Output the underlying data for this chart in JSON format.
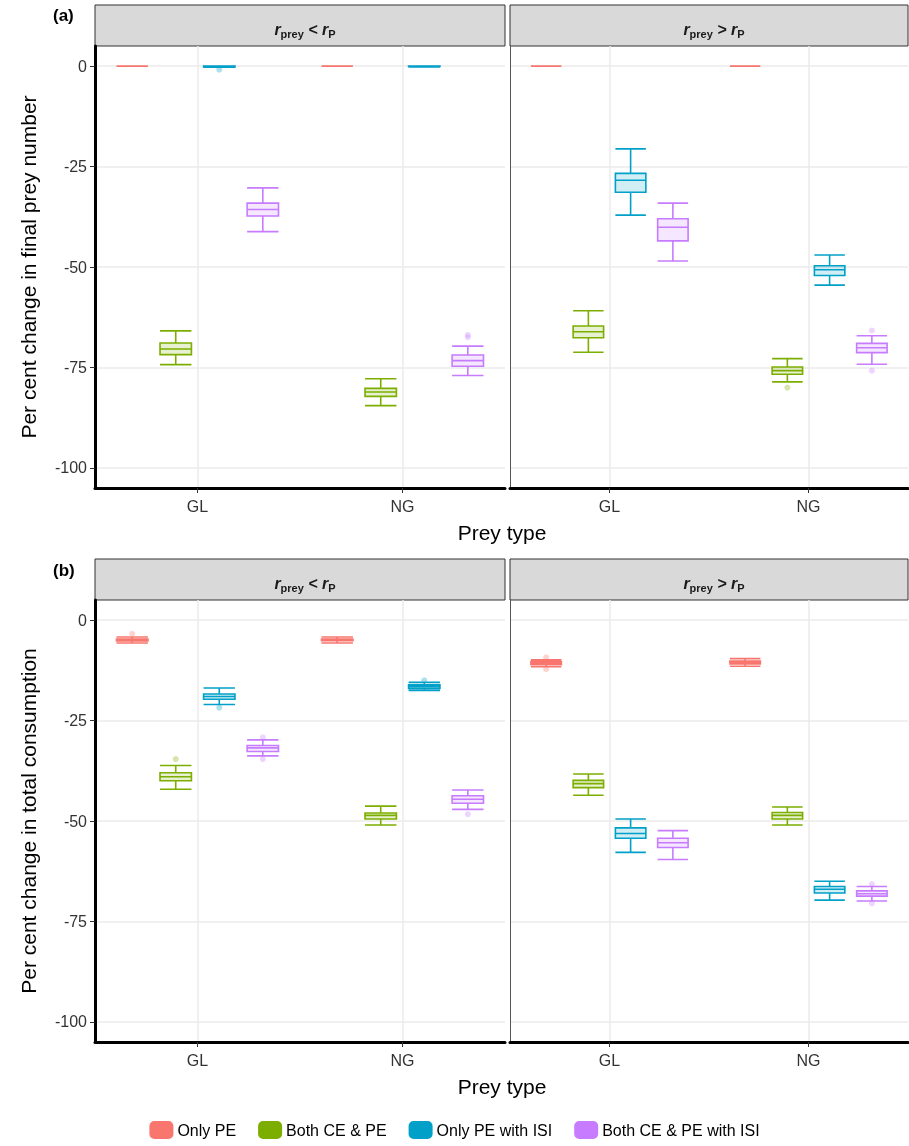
{
  "chart_data": [
    {
      "type": "box",
      "title": "r$_{prey}$ < r$_{P}$",
      "annotations": [
        "(a)"
      ],
      "xlabel": "Prey type",
      "ylabel": "Per cent change in final prey number",
      "categories": [
        "GL",
        "NG"
      ],
      "ylim": [
        -105,
        5
      ],
      "yticks": [
        0,
        -25,
        -50,
        -75,
        -100
      ],
      "grid": true,
      "series": [
        {
          "color": "#f8766d",
          "boxes": [
            {
              "low": 0,
              "q1": 0,
              "median": 0,
              "q3": 0,
              "high": 0
            },
            {
              "low": 0,
              "q1": 0,
              "median": 0,
              "q3": 0,
              "high": 0
            }
          ]
        },
        {
          "color": "#7cae00",
          "boxes": [
            {
              "low": -74.3,
              "q1": -71.8,
              "median": -70.4,
              "q3": -68.9,
              "high": -65.9
            },
            {
              "low": -84.5,
              "q1": -82.2,
              "median": -81.1,
              "q3": -80.2,
              "high": -77.8
            }
          ]
        },
        {
          "color": "#00a0c8",
          "boxes": [
            {
              "low": -0.3,
              "q1": -0.2,
              "median": -0.1,
              "q3": 0,
              "high": 0,
              "outliers": [
                -0.9
              ]
            },
            {
              "low": -0.2,
              "q1": -0.1,
              "median": 0,
              "q3": 0,
              "high": 0
            }
          ]
        },
        {
          "color": "#c77cff",
          "boxes": [
            {
              "low": -41.2,
              "q1": -37.3,
              "median": -35.7,
              "q3": -34.1,
              "high": -30.3
            },
            {
              "low": -77,
              "q1": -74.7,
              "median": -73.3,
              "q3": -71.9,
              "high": -69.7,
              "outliers": [
                -66.9,
                -67.5
              ]
            }
          ]
        }
      ]
    },
    {
      "type": "box",
      "title": "r$_{prey}$ > r$_{P}$",
      "categories": [
        "GL",
        "NG"
      ],
      "ylim": [
        -105,
        5
      ],
      "yticks": [
        0,
        -25,
        -50,
        -75,
        -100
      ],
      "grid": true,
      "tick_labels": "x",
      "series": [
        {
          "color": "#f8766d",
          "boxes": [
            {
              "low": 0,
              "q1": 0,
              "median": 0,
              "q3": 0,
              "high": 0
            },
            {
              "low": 0,
              "q1": 0,
              "median": 0,
              "q3": 0,
              "high": 0
            }
          ]
        },
        {
          "color": "#7cae00",
          "boxes": [
            {
              "low": -71.2,
              "q1": -67.6,
              "median": -66.1,
              "q3": -64.7,
              "high": -60.9
            },
            {
              "low": -78.6,
              "q1": -76.7,
              "median": -75.8,
              "q3": -74.9,
              "high": -72.8,
              "outliers": [
                -80
              ]
            }
          ]
        },
        {
          "color": "#00a0c8",
          "boxes": [
            {
              "low": -37.1,
              "q1": -31.4,
              "median": -28.4,
              "q3": -26.7,
              "high": -20.6
            },
            {
              "low": -54.5,
              "q1": -52.1,
              "median": -50.7,
              "q3": -49.7,
              "high": -47
            }
          ]
        },
        {
          "color": "#c77cff",
          "boxes": [
            {
              "low": -48.5,
              "q1": -43.5,
              "median": -40.1,
              "q3": -38,
              "high": -34.1
            },
            {
              "low": -74.2,
              "q1": -71.3,
              "median": -70.1,
              "q3": -69,
              "high": -67.1,
              "outliers": [
                -65.8,
                -75.8
              ]
            }
          ]
        }
      ]
    },
    {
      "type": "box",
      "title": "r$_{prey}$ < r$_{P}$",
      "annotations": [
        "(b)"
      ],
      "xlabel": "Prey type",
      "ylabel": "Per cent change in total consumption",
      "categories": [
        "GL",
        "NG"
      ],
      "ylim": [
        -105,
        5
      ],
      "yticks": [
        0,
        -25,
        -50,
        -75,
        -100
      ],
      "grid": true,
      "legend": "bottom",
      "series": [
        {
          "name": "Only PE",
          "color": "#f8766d",
          "boxes": [
            {
              "low": -5.7,
              "q1": -5.2,
              "median": -4.9,
              "q3": -4.7,
              "high": -4.2,
              "outliers": [
                -3.4
              ]
            },
            {
              "low": -5.7,
              "q1": -5.1,
              "median": -4.9,
              "q3": -4.7,
              "high": -4.2
            }
          ]
        },
        {
          "name": "Both CE & PE",
          "color": "#7cae00",
          "boxes": [
            {
              "low": -42.1,
              "q1": -40,
              "median": -39,
              "q3": -38,
              "high": -36.2,
              "outliers": [
                -34.6
              ]
            },
            {
              "low": -51,
              "q1": -49.5,
              "median": -48.6,
              "q3": -48,
              "high": -46.3
            }
          ]
        },
        {
          "name": "Only PE with ISI",
          "color": "#00a0c8",
          "boxes": [
            {
              "low": -21,
              "q1": -19.7,
              "median": -19,
              "q3": -18.4,
              "high": -16.9,
              "outliers": [
                -21.8
              ]
            },
            {
              "low": -17.5,
              "q1": -17,
              "median": -16.5,
              "q3": -16.1,
              "high": -15.5,
              "outliers": [
                -15
              ]
            }
          ]
        },
        {
          "name": "Both CE & PE with ISI",
          "color": "#c77cff",
          "boxes": [
            {
              "low": -33.8,
              "q1": -32.7,
              "median": -31.8,
              "q3": -31.2,
              "high": -29.8,
              "outliers": [
                -29.2,
                -34.6
              ]
            },
            {
              "low": -47.1,
              "q1": -45.6,
              "median": -44.6,
              "q3": -43.7,
              "high": -42.3,
              "outliers": [
                -48.3
              ]
            }
          ]
        }
      ]
    },
    {
      "type": "box",
      "title": "r$_{prey}$ > r$_{P}$",
      "categories": [
        "GL",
        "NG"
      ],
      "ylim": [
        -105,
        5
      ],
      "yticks": [
        0,
        -25,
        -50,
        -75,
        -100
      ],
      "grid": true,
      "tick_labels": "x",
      "series": [
        {
          "color": "#f8766d",
          "boxes": [
            {
              "low": -11.6,
              "q1": -11.1,
              "median": -10.7,
              "q3": -10.3,
              "high": -9.9,
              "outliers": [
                -9.3,
                -12.2
              ]
            },
            {
              "low": -11.5,
              "q1": -10.9,
              "median": -10.6,
              "q3": -10.2,
              "high": -9.6
            }
          ]
        },
        {
          "color": "#7cae00",
          "boxes": [
            {
              "low": -43.6,
              "q1": -41.7,
              "median": -40.7,
              "q3": -39.9,
              "high": -38.3
            },
            {
              "low": -51,
              "q1": -49.5,
              "median": -48.6,
              "q3": -47.9,
              "high": -46.5
            }
          ]
        },
        {
          "color": "#00a0c8",
          "boxes": [
            {
              "low": -57.8,
              "q1": -54.3,
              "median": -53.1,
              "q3": -51.7,
              "high": -49.5
            },
            {
              "low": -69.7,
              "q1": -67.9,
              "median": -67,
              "q3": -66.3,
              "high": -65
            }
          ]
        },
        {
          "color": "#c77cff",
          "boxes": [
            {
              "low": -59.6,
              "q1": -56.6,
              "median": -55.4,
              "q3": -54.3,
              "high": -52.4
            },
            {
              "low": -69.9,
              "q1": -68.7,
              "median": -68.1,
              "q3": -67.4,
              "high": -66.3,
              "outliers": [
                -65.7,
                -70.5
              ]
            }
          ]
        }
      ]
    }
  ]
}
